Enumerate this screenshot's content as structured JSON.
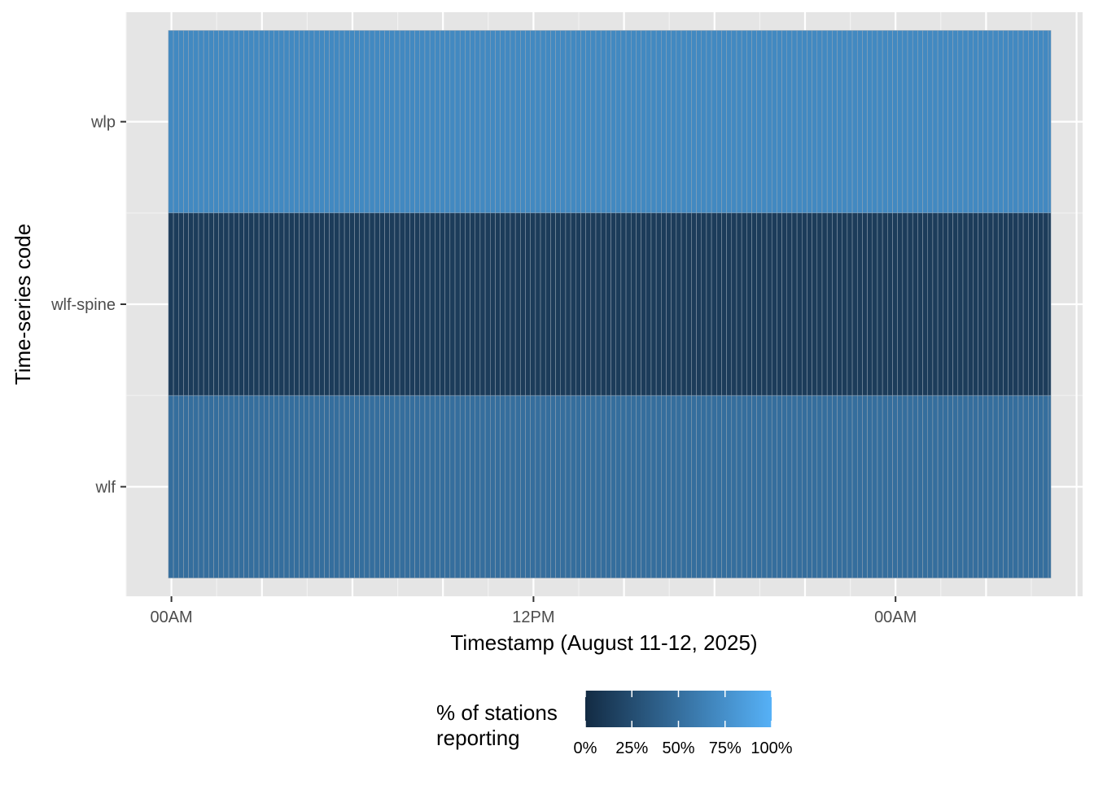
{
  "chart_data": {
    "type": "heatmap",
    "xlabel": "Timestamp (August 11-12, 2025)",
    "ylabel": "Time-series code",
    "x_tick_labels": [
      "00AM",
      "12PM",
      "00AM"
    ],
    "x_tick_hours": [
      0,
      12,
      24
    ],
    "x_range_hours": [
      -1.5,
      30.2
    ],
    "x_bins": {
      "start_hour": -0.1,
      "end_hour": 29.15,
      "bin_minutes": 10
    },
    "categories": [
      "wlf",
      "wlf-spine",
      "wlp"
    ],
    "series": [
      {
        "code": "wlp",
        "percent_reporting": 70
      },
      {
        "code": "wlf-spine",
        "percent_reporting": 13
      },
      {
        "code": "wlf",
        "percent_reporting": 50
      }
    ],
    "legend": {
      "title_line1": "% of stations",
      "title_line2": "reporting",
      "position": "bottom",
      "tick_labels": [
        "0%",
        "25%",
        "50%",
        "75%",
        "100%"
      ],
      "tick_values": [
        0,
        25,
        50,
        75,
        100
      ],
      "color_low": "#132b43",
      "color_high": "#56b1f7"
    },
    "colors": {
      "panel_background": "#e5e5e5",
      "grid_major": "#ffffff",
      "tile_border": "#9aa8b6"
    },
    "grid": true
  }
}
